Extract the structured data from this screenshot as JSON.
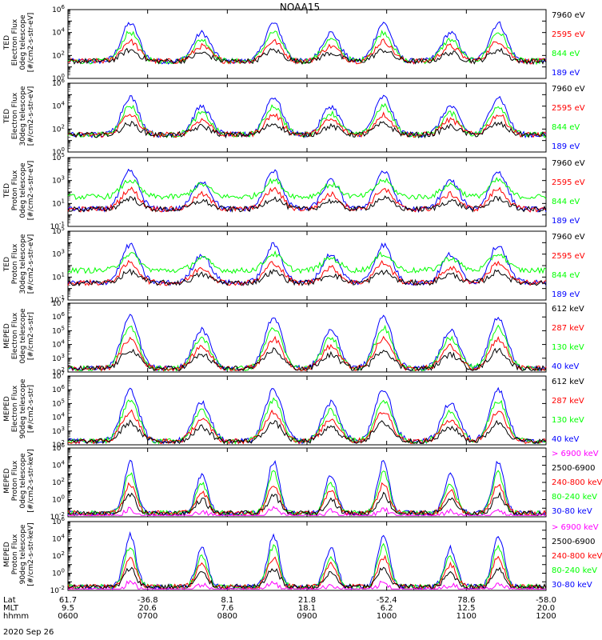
{
  "title": "NOAA15",
  "date": "2020 Sep 26",
  "row_labels": [
    "Lat",
    "MLT",
    "hhmm"
  ],
  "time_ticks": [
    {
      "hhmm": "0600",
      "lat": "61.7",
      "mlt": "9.5"
    },
    {
      "hhmm": "0700",
      "lat": "-36.8",
      "mlt": "20.6"
    },
    {
      "hhmm": "0800",
      "lat": "8.1",
      "mlt": "7.6"
    },
    {
      "hhmm": "0900",
      "lat": "21.8",
      "mlt": "18.1"
    },
    {
      "hhmm": "1000",
      "lat": "-52.4",
      "mlt": "6.2"
    },
    {
      "hhmm": "1100",
      "lat": "78.6",
      "mlt": "12.5"
    },
    {
      "hhmm": "1200",
      "lat": "-58.0",
      "mlt": "20.0"
    }
  ],
  "colors": {
    "blue": "#0000ff",
    "red": "#ff0000",
    "green": "#00ff00",
    "black": "#000000",
    "magenta": "#ff00ff"
  },
  "chart_data": [
    {
      "type": "line",
      "ylabel": [
        "TED",
        "Electron Flux",
        "0deg telescope",
        "[#/cm2-s-str-eV]"
      ],
      "yscale": "log",
      "ylim_exp": [
        0,
        6
      ],
      "tick_exps": [
        0,
        2,
        4,
        6
      ],
      "legend": [
        {
          "name": "7960 eV",
          "color": "black"
        },
        {
          "name": "2595 eV",
          "color": "red"
        },
        {
          "name": "844 eV",
          "color": "green"
        },
        {
          "name": "189 eV",
          "color": "blue"
        }
      ]
    },
    {
      "type": "line",
      "ylabel": [
        "TED",
        "Electron Flux",
        "30deg telescope",
        "[#/cm2-s-str-eV]"
      ],
      "yscale": "log",
      "ylim_exp": [
        0,
        6
      ],
      "tick_exps": [
        0,
        2,
        4,
        6
      ],
      "legend": [
        {
          "name": "7960 eV",
          "color": "black"
        },
        {
          "name": "2595 eV",
          "color": "red"
        },
        {
          "name": "844 eV",
          "color": "green"
        },
        {
          "name": "189 eV",
          "color": "blue"
        }
      ]
    },
    {
      "type": "line",
      "ylabel": [
        "TED",
        "Proton Flux",
        "0deg telescope",
        "[#/cm2-s-str-eV]"
      ],
      "yscale": "log",
      "ylim_exp": [
        -1,
        5
      ],
      "tick_exps": [
        -1,
        1,
        3,
        5
      ],
      "legend": [
        {
          "name": "7960 eV",
          "color": "black"
        },
        {
          "name": "2595 eV",
          "color": "red"
        },
        {
          "name": "844 eV",
          "color": "green"
        },
        {
          "name": "189 eV",
          "color": "blue"
        }
      ]
    },
    {
      "type": "line",
      "ylabel": [
        "TED",
        "Proton Flux",
        "30deg telescope",
        "[#/cm2-s-str-eV]"
      ],
      "yscale": "log",
      "ylim_exp": [
        -1,
        5
      ],
      "tick_exps": [
        -1,
        1,
        3,
        5
      ],
      "legend": [
        {
          "name": "7960 eV",
          "color": "black"
        },
        {
          "name": "2595 eV",
          "color": "red"
        },
        {
          "name": "844 eV",
          "color": "green"
        },
        {
          "name": "189 eV",
          "color": "blue"
        }
      ]
    },
    {
      "type": "line",
      "ylabel": [
        "MEPED",
        "Electron Flux",
        "0deg telescope",
        "[#/cm2-s-str]"
      ],
      "yscale": "log",
      "ylim_exp": [
        2,
        7
      ],
      "tick_exps": [
        2,
        3,
        4,
        5,
        6,
        7
      ],
      "legend": [
        {
          "name": "612 keV",
          "color": "black"
        },
        {
          "name": "287 keV",
          "color": "red"
        },
        {
          "name": "130 keV",
          "color": "green"
        },
        {
          "name": "40 keV",
          "color": "blue"
        }
      ]
    },
    {
      "type": "line",
      "ylabel": [
        "MEPED",
        "Electron Flux",
        "90deg telescope",
        "[#/cm2-s-str]"
      ],
      "yscale": "log",
      "ylim_exp": [
        2,
        7
      ],
      "tick_exps": [
        2,
        3,
        4,
        5,
        6,
        7
      ],
      "legend": [
        {
          "name": "612 keV",
          "color": "black"
        },
        {
          "name": "287 keV",
          "color": "red"
        },
        {
          "name": "130 keV",
          "color": "green"
        },
        {
          "name": "40 keV",
          "color": "blue"
        }
      ]
    },
    {
      "type": "line",
      "ylabel": [
        "MEPED",
        "Proton Flux",
        "0deg telescope",
        "[#/cm2-s-str-keV]"
      ],
      "yscale": "log",
      "ylim_exp": [
        -2,
        6
      ],
      "tick_exps": [
        -2,
        0,
        2,
        4,
        6
      ],
      "legend": [
        {
          "name": "> 6900 keV",
          "color": "magenta"
        },
        {
          "name": "2500-6900",
          "color": "black"
        },
        {
          "name": "240-800 keV",
          "color": "red"
        },
        {
          "name": "80-240 keV",
          "color": "green"
        },
        {
          "name": "30-80 keV",
          "color": "blue"
        }
      ]
    },
    {
      "type": "line",
      "ylabel": [
        "MEPED",
        "Proton Flux",
        "90deg telescope",
        "[#/cm2-s-str-keV]"
      ],
      "yscale": "log",
      "ylim_exp": [
        -2,
        6
      ],
      "tick_exps": [
        -2,
        0,
        2,
        4,
        6
      ],
      "legend": [
        {
          "name": "> 6900 keV",
          "color": "magenta"
        },
        {
          "name": "2500-6900",
          "color": "black"
        },
        {
          "name": "240-800 keV",
          "color": "red"
        },
        {
          "name": "80-240 keV",
          "color": "green"
        },
        {
          "name": "30-80 keV",
          "color": "blue"
        }
      ]
    }
  ]
}
